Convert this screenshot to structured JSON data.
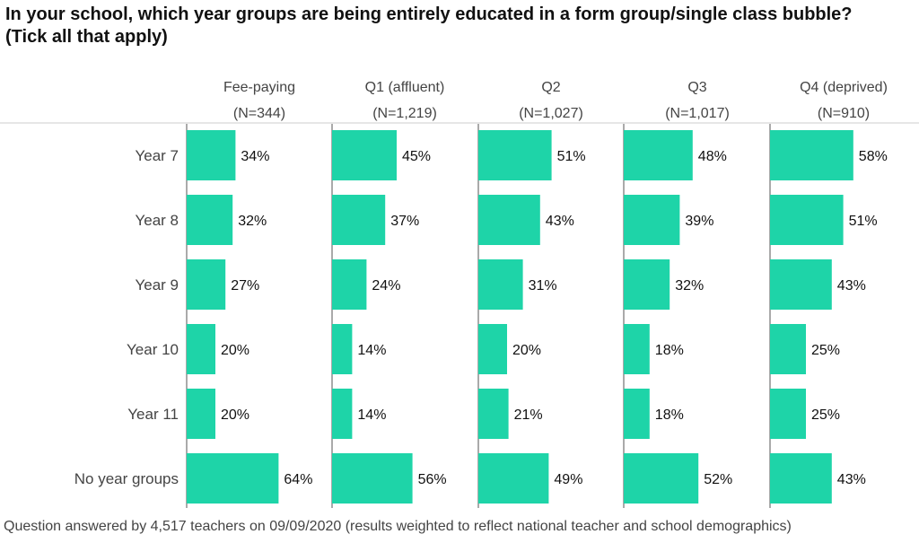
{
  "title_line1": "In your school, which year groups are being entirely educated in a form group/single class bubble?",
  "title_line2": "(Tick all that apply)",
  "footnote": "Question answered by 4,517 teachers on 09/09/2020 (results weighted to reflect national teacher and school demographics)",
  "colors": {
    "bar": "#1ed4a8",
    "axis": "#555555"
  },
  "chart_data": {
    "type": "bar",
    "orientation": "horizontal",
    "title": "In your school, which year groups are being entirely educated in a form group/single class bubble? (Tick all that apply)",
    "categories": [
      "Year 7",
      "Year 8",
      "Year 9",
      "Year 10",
      "Year 11",
      "No year groups"
    ],
    "series": [
      {
        "name": "Fee-paying",
        "n_label": "(N=344)",
        "values": [
          34,
          32,
          27,
          20,
          20,
          64
        ]
      },
      {
        "name": "Q1 (affluent)",
        "n_label": "(N=1,219)",
        "values": [
          45,
          37,
          24,
          14,
          14,
          56
        ]
      },
      {
        "name": "Q2",
        "n_label": "(N=1,027)",
        "values": [
          51,
          43,
          31,
          20,
          21,
          49
        ]
      },
      {
        "name": "Q3",
        "n_label": "(N=1,017)",
        "values": [
          48,
          39,
          32,
          18,
          18,
          52
        ]
      },
      {
        "name": "Q4 (deprived)",
        "n_label": "(N=910)",
        "values": [
          58,
          51,
          43,
          25,
          25,
          43
        ]
      }
    ],
    "value_suffix": "%",
    "xlim": [
      0,
      100
    ]
  }
}
